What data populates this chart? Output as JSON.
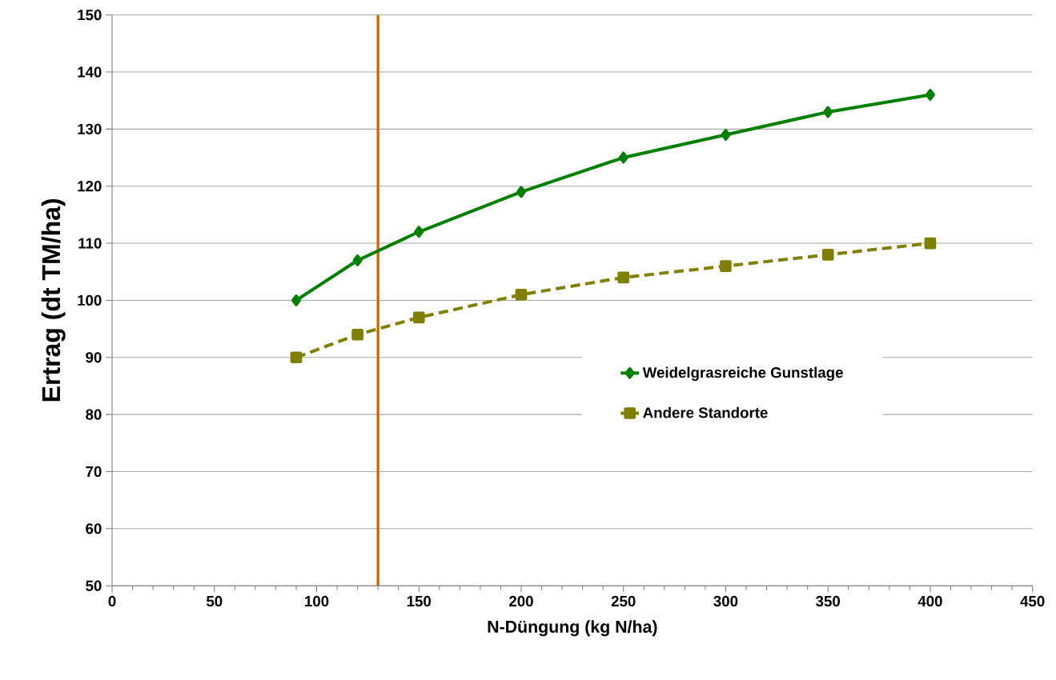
{
  "chart_data": {
    "type": "line",
    "xlabel": "N-Düngung (kg N/ha)",
    "ylabel": "Ertrag (dt TM/ha)",
    "x": [
      90,
      120,
      150,
      200,
      250,
      300,
      350,
      400
    ],
    "series": [
      {
        "name": "Weidelgrasreiche Gunstlage",
        "color": "#008000",
        "marker": "diamond",
        "line_style": "solid",
        "values": [
          100,
          107,
          112,
          119,
          125,
          129,
          133,
          136
        ]
      },
      {
        "name": "Andere Standorte",
        "color": "#808000",
        "marker": "square",
        "line_style": "dashed",
        "values": [
          90,
          94,
          97,
          101,
          104,
          106,
          108,
          110
        ]
      }
    ],
    "xlim": [
      0,
      450
    ],
    "xticks": [
      0,
      50,
      100,
      150,
      200,
      250,
      300,
      350,
      400,
      450
    ],
    "ylim": [
      50,
      150
    ],
    "yticks": [
      50,
      60,
      70,
      80,
      90,
      100,
      110,
      120,
      130,
      140,
      150
    ],
    "ref_lines": [
      {
        "axis": "x",
        "value": 130,
        "color": "#cc6600"
      }
    ],
    "grid": "y",
    "legend": "right"
  }
}
